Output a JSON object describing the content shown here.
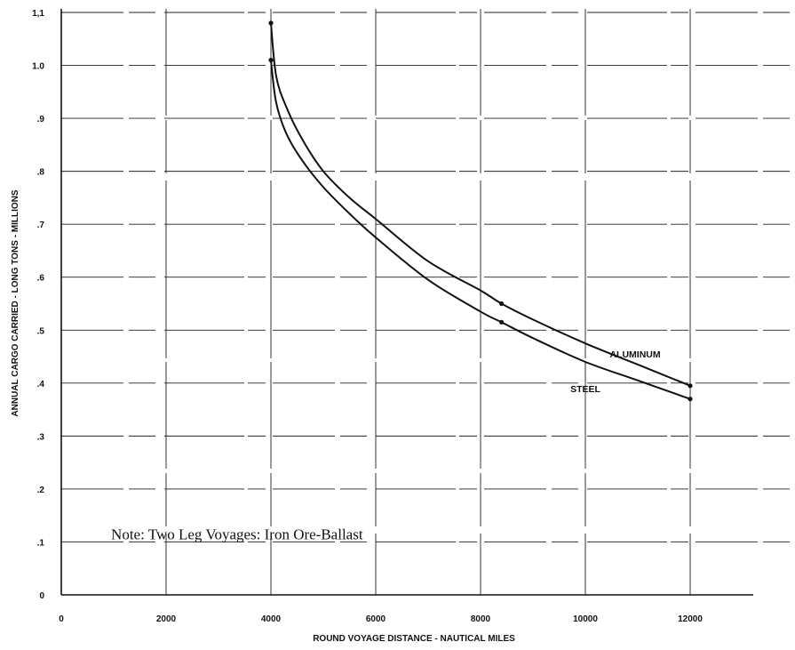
{
  "chart_data": {
    "type": "line",
    "xlabel": "ROUND VOYAGE DISTANCE - NAUTICAL MILES",
    "ylabel": "ANNUAL CARGO CARRIED - LONG TONS - MILLIONS",
    "xlim": [
      0,
      13000
    ],
    "ylim": [
      0,
      1.1
    ],
    "x_ticks": [
      {
        "value": 0,
        "label": "0"
      },
      {
        "value": 2000,
        "label": "2000"
      },
      {
        "value": 4000,
        "label": "4000"
      },
      {
        "value": 6000,
        "label": "6000"
      },
      {
        "value": 8000,
        "label": "8000"
      },
      {
        "value": 10000,
        "label": "10000"
      },
      {
        "value": 12000,
        "label": "12000"
      }
    ],
    "y_ticks": [
      {
        "value": 0,
        "label": "0"
      },
      {
        "value": 0.1,
        "label": ".1"
      },
      {
        "value": 0.2,
        "label": ".2"
      },
      {
        "value": 0.3,
        "label": ".3"
      },
      {
        "value": 0.4,
        "label": ".4"
      },
      {
        "value": 0.5,
        "label": ".5"
      },
      {
        "value": 0.6,
        "label": ".6"
      },
      {
        "value": 0.7,
        "label": ".7"
      },
      {
        "value": 0.8,
        "label": ".8"
      },
      {
        "value": 0.9,
        "label": ".9"
      },
      {
        "value": 1.0,
        "label": "1.0"
      },
      {
        "value": 1.1,
        "label": "1,1"
      }
    ],
    "grid": true,
    "series": [
      {
        "name": "ALUMINUM",
        "x": [
          4000,
          4100,
          4300,
          4600,
          5000,
          5500,
          6000,
          7000,
          8000,
          8400,
          9000,
          10000,
          11000,
          12000
        ],
        "y": [
          1.08,
          0.98,
          0.92,
          0.86,
          0.8,
          0.75,
          0.71,
          0.63,
          0.575,
          0.55,
          0.52,
          0.475,
          0.435,
          0.395
        ],
        "markers_at": [
          4000,
          8400,
          12000
        ],
        "label_at": {
          "x": 10950,
          "y": 0.455
        }
      },
      {
        "name": "STEEL",
        "x": [
          4000,
          4100,
          4300,
          4600,
          5000,
          5500,
          6000,
          7000,
          8000,
          8400,
          9000,
          10000,
          11000,
          12000
        ],
        "y": [
          1.01,
          0.93,
          0.87,
          0.82,
          0.77,
          0.72,
          0.675,
          0.595,
          0.535,
          0.515,
          0.485,
          0.44,
          0.405,
          0.37
        ],
        "markers_at": [
          4000,
          8400,
          12000
        ],
        "label_at": {
          "x": 10000,
          "y": 0.39
        }
      }
    ],
    "annotations": [
      {
        "text": "Note:  Two Leg Voyages:  Iron Ore-Ballast",
        "x": 950,
        "y": 0.105
      }
    ]
  }
}
